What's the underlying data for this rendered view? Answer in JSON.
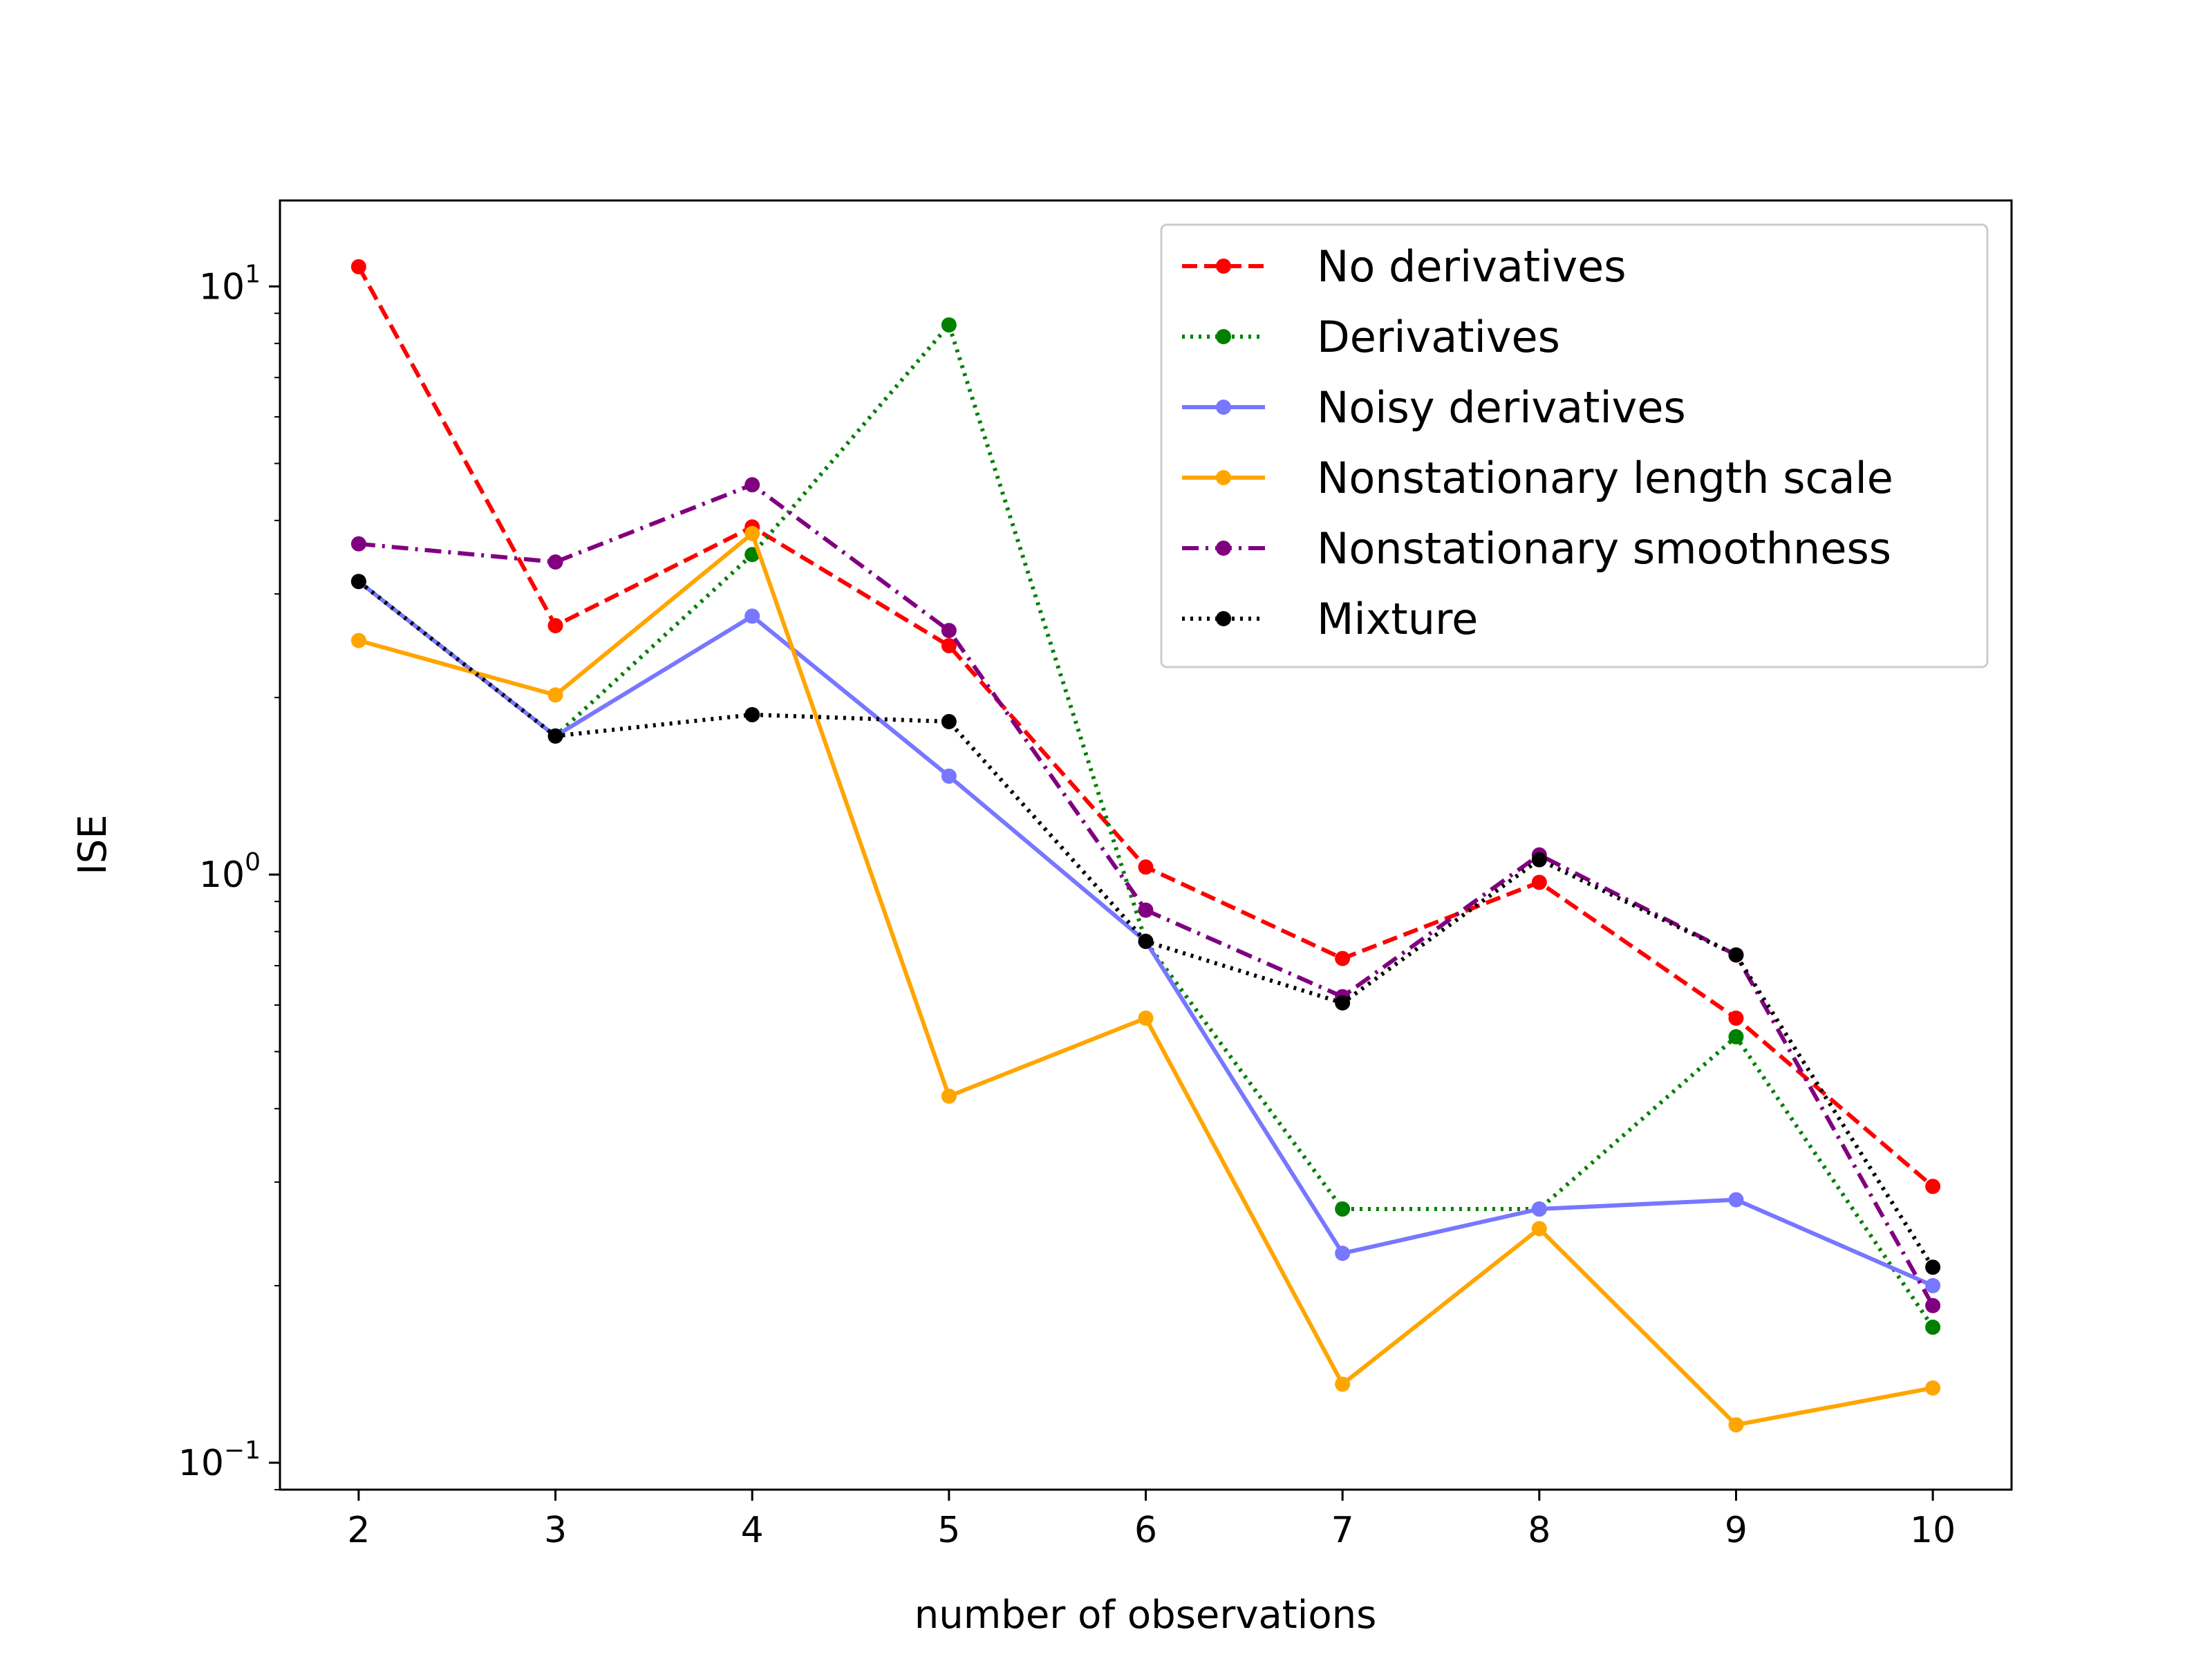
{
  "chart_data": {
    "type": "line",
    "title": "",
    "xlabel": "number of observations",
    "ylabel": "ISE",
    "yscale": "log",
    "ylim": [
      0.09,
      14
    ],
    "xlim": [
      1.6,
      10.4
    ],
    "grid": false,
    "legend_position": "top-right",
    "x_ticks": [
      2,
      3,
      4,
      5,
      6,
      7,
      8,
      9,
      10
    ],
    "y_ticks": [
      {
        "value": 0.1,
        "base": "10",
        "exp": "−1"
      },
      {
        "value": 1,
        "base": "10",
        "exp": "0"
      },
      {
        "value": 10,
        "base": "10",
        "exp": "1"
      }
    ],
    "x": [
      2,
      3,
      4,
      5,
      6,
      7,
      8,
      9,
      10
    ],
    "series": [
      {
        "name": "No derivatives",
        "color": "#ff0000",
        "dash": "dashed",
        "values": [
          10.8,
          2.65,
          3.9,
          2.45,
          1.03,
          0.72,
          0.97,
          0.57,
          0.295
        ]
      },
      {
        "name": "Derivatives",
        "color": "#008000",
        "dash": "dotted",
        "values": [
          3.15,
          1.72,
          3.5,
          8.6,
          0.77,
          0.27,
          0.27,
          0.53,
          0.17
        ]
      },
      {
        "name": "Noisy derivatives",
        "color": "#7777ff",
        "dash": "solid",
        "values": [
          3.15,
          1.72,
          2.75,
          1.47,
          0.77,
          0.227,
          0.27,
          0.28,
          0.2
        ]
      },
      {
        "name": "Nonstationary length scale",
        "color": "#ffa500",
        "dash": "solid",
        "values": [
          2.5,
          2.02,
          3.8,
          0.42,
          0.57,
          0.136,
          0.25,
          0.116,
          0.134
        ]
      },
      {
        "name": "Nonstationary smoothness",
        "color": "#800080",
        "dash": "dashdot",
        "values": [
          3.65,
          3.4,
          4.6,
          2.6,
          0.87,
          0.62,
          1.08,
          0.73,
          0.185
        ]
      },
      {
        "name": "Mixture",
        "color": "#000000",
        "dash": "dotted",
        "values": [
          3.15,
          1.72,
          1.87,
          1.82,
          0.77,
          0.605,
          1.06,
          0.73,
          0.215
        ]
      }
    ]
  }
}
